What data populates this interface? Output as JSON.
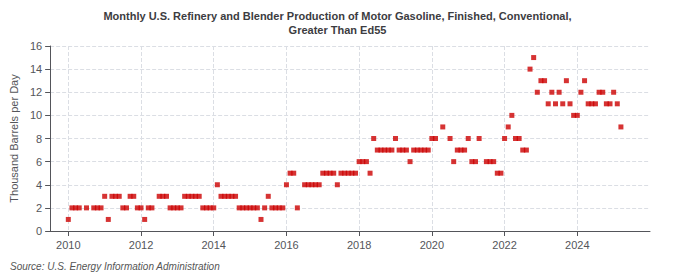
{
  "chart_data": {
    "type": "scatter",
    "title": "Monthly U.S. Refinery and Blender Production of Motor Gasoline, Finished, Conventional,\nGreater Than Ed55",
    "ylabel": "Thousand Barrels per Day",
    "source": "Source: U.S. Energy Information Administration",
    "color": "#cc0000",
    "marker": "square",
    "grid": true,
    "xlim": [
      2009.5,
      2026.0
    ],
    "xticks": [
      2010,
      2012,
      2014,
      2016,
      2018,
      2020,
      2022,
      2024
    ],
    "ylim": [
      0,
      16
    ],
    "yticks": [
      0,
      2,
      4,
      6,
      8,
      10,
      12,
      14,
      16
    ],
    "x": [
      2010.0,
      2010.1,
      2010.2,
      2010.3,
      2010.5,
      2010.7,
      2010.8,
      2010.9,
      2011.0,
      2011.1,
      2011.2,
      2011.3,
      2011.4,
      2011.5,
      2011.6,
      2011.7,
      2011.8,
      2011.9,
      2012.0,
      2012.1,
      2012.2,
      2012.3,
      2012.5,
      2012.6,
      2012.7,
      2012.8,
      2012.9,
      2013.0,
      2013.1,
      2013.2,
      2013.3,
      2013.4,
      2013.5,
      2013.6,
      2013.7,
      2013.8,
      2013.9,
      2014.0,
      2014.1,
      2014.2,
      2014.3,
      2014.4,
      2014.5,
      2014.6,
      2014.7,
      2014.8,
      2014.9,
      2015.0,
      2015.1,
      2015.2,
      2015.3,
      2015.4,
      2015.5,
      2015.6,
      2015.7,
      2015.8,
      2015.9,
      2016.0,
      2016.1,
      2016.2,
      2016.3,
      2016.5,
      2016.6,
      2016.7,
      2016.8,
      2016.9,
      2017.0,
      2017.1,
      2017.2,
      2017.3,
      2017.4,
      2017.5,
      2017.6,
      2017.7,
      2017.8,
      2017.9,
      2018.0,
      2018.1,
      2018.2,
      2018.3,
      2018.4,
      2018.5,
      2018.6,
      2018.7,
      2018.8,
      2018.9,
      2019.0,
      2019.1,
      2019.2,
      2019.3,
      2019.4,
      2019.5,
      2019.6,
      2019.7,
      2019.8,
      2019.9,
      2020.0,
      2020.1,
      2020.3,
      2020.5,
      2020.6,
      2020.7,
      2020.8,
      2020.9,
      2021.0,
      2021.1,
      2021.2,
      2021.3,
      2021.5,
      2021.6,
      2021.7,
      2021.8,
      2021.9,
      2022.0,
      2022.1,
      2022.2,
      2022.3,
      2022.4,
      2022.5,
      2022.6,
      2022.7,
      2022.8,
      2022.9,
      2023.0,
      2023.1,
      2023.2,
      2023.3,
      2023.4,
      2023.5,
      2023.6,
      2023.7,
      2023.8,
      2023.9,
      2024.0,
      2024.1,
      2024.2,
      2024.3,
      2024.4,
      2024.5,
      2024.6,
      2024.7,
      2024.8,
      2024.9,
      2025.0,
      2025.1,
      2025.2
    ],
    "values": [
      1,
      2,
      2,
      2,
      2,
      2,
      2,
      2,
      3,
      1,
      3,
      3,
      3,
      2,
      2,
      3,
      3,
      2,
      2,
      1,
      2,
      2,
      3,
      3,
      3,
      2,
      2,
      2,
      2,
      3,
      3,
      3,
      3,
      3,
      2,
      2,
      2,
      2,
      4,
      3,
      3,
      3,
      3,
      3,
      2,
      2,
      2,
      2,
      2,
      2,
      1,
      2,
      3,
      2,
      2,
      2,
      2,
      4,
      5,
      5,
      2,
      4,
      4,
      4,
      4,
      4,
      5,
      5,
      5,
      5,
      4,
      5,
      5,
      5,
      5,
      5,
      6,
      6,
      6,
      5,
      8,
      7,
      7,
      7,
      7,
      7,
      8,
      7,
      7,
      7,
      6,
      7,
      7,
      7,
      7,
      7,
      8,
      8,
      9,
      8,
      6,
      7,
      7,
      7,
      8,
      6,
      6,
      8,
      6,
      6,
      6,
      5,
      5,
      8,
      9,
      10,
      8,
      8,
      7,
      7,
      14,
      15,
      12,
      13,
      13,
      11,
      12,
      11,
      12,
      11,
      13,
      11,
      10,
      10,
      12,
      13,
      11,
      11,
      11,
      12,
      12,
      11,
      11,
      12,
      11,
      9
    ]
  }
}
